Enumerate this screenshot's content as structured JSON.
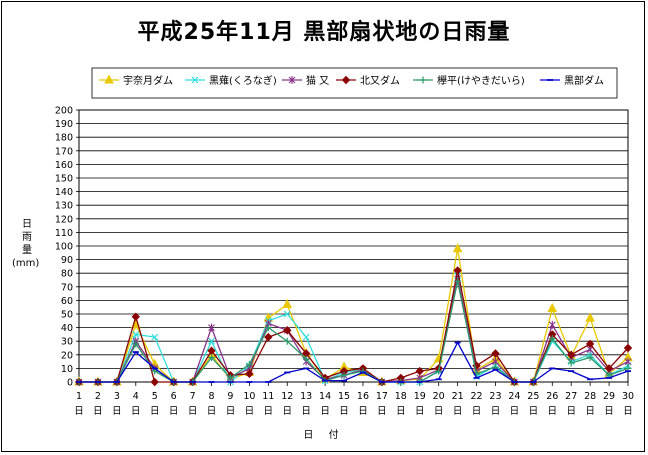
{
  "chart_data": {
    "type": "line",
    "title": "平成25年11月 黒部扇状地の日雨量",
    "ylabel_lines": [
      "日",
      "雨",
      "量"
    ],
    "yunit": "(mm)",
    "xlabel": "日 付",
    "ylim": [
      0,
      200
    ],
    "ytick_step": 10,
    "grid": true,
    "legend_placement": "top",
    "x": [
      "1日",
      "2日",
      "3日",
      "4日",
      "5日",
      "6日",
      "7日",
      "8日",
      "9日",
      "10日",
      "11日",
      "12日",
      "13日",
      "14日",
      "15日",
      "16日",
      "17日",
      "18日",
      "19日",
      "20日",
      "21日",
      "22日",
      "23日",
      "24日",
      "25日",
      "26日",
      "27日",
      "28日",
      "29日",
      "30日"
    ],
    "series": [
      {
        "name": "宇奈月ダム",
        "color": "#e8c800",
        "marker": "triangle",
        "values": [
          0,
          0,
          0,
          42,
          13,
          0,
          0,
          20,
          2,
          7,
          47,
          57,
          21,
          2,
          11,
          7,
          0,
          1,
          2,
          17,
          98,
          9,
          17,
          0,
          0,
          54,
          19,
          47,
          6,
          18
        ]
      },
      {
        "name": "黒薙(くろなぎ)",
        "color": "#33dddd",
        "marker": "x",
        "values": [
          0,
          0,
          0,
          35,
          33,
          0,
          0,
          30,
          0,
          12,
          45,
          50,
          33,
          1,
          7,
          9,
          0,
          0,
          0,
          8,
          78,
          4,
          12,
          0,
          0,
          30,
          15,
          20,
          5,
          12
        ]
      },
      {
        "name": "猫 又",
        "color": "#883388",
        "marker": "star",
        "values": [
          0,
          0,
          0,
          30,
          10,
          0,
          0,
          40,
          3,
          10,
          43,
          38,
          15,
          2,
          5,
          9,
          0,
          1,
          3,
          9,
          76,
          8,
          15,
          0,
          0,
          42,
          18,
          24,
          8,
          15
        ]
      },
      {
        "name": "北又ダム",
        "color": "#8b0000",
        "marker": "diamond",
        "values": [
          0,
          0,
          0,
          48,
          0,
          0,
          0,
          23,
          5,
          6,
          33,
          38,
          21,
          3,
          8,
          10,
          0,
          3,
          8,
          10,
          82,
          12,
          21,
          0,
          0,
          35,
          20,
          28,
          10,
          25
        ]
      },
      {
        "name": "欅平(けやきだいら)",
        "color": "#2a9a6a",
        "marker": "plus",
        "values": [
          0,
          0,
          0,
          28,
          8,
          0,
          0,
          18,
          3,
          13,
          40,
          30,
          17,
          1,
          5,
          8,
          0,
          0,
          0,
          8,
          74,
          6,
          11,
          0,
          0,
          32,
          14,
          18,
          5,
          10
        ]
      },
      {
        "name": "黒部ダム",
        "color": "#0000cc",
        "marker": "dash",
        "values": [
          0,
          0,
          0,
          22,
          10,
          0,
          0,
          0,
          0,
          0,
          0,
          7,
          10,
          1,
          1,
          7,
          0,
          0,
          0,
          2,
          29,
          3,
          9,
          0,
          0,
          10,
          8,
          2,
          3,
          8
        ]
      }
    ]
  }
}
